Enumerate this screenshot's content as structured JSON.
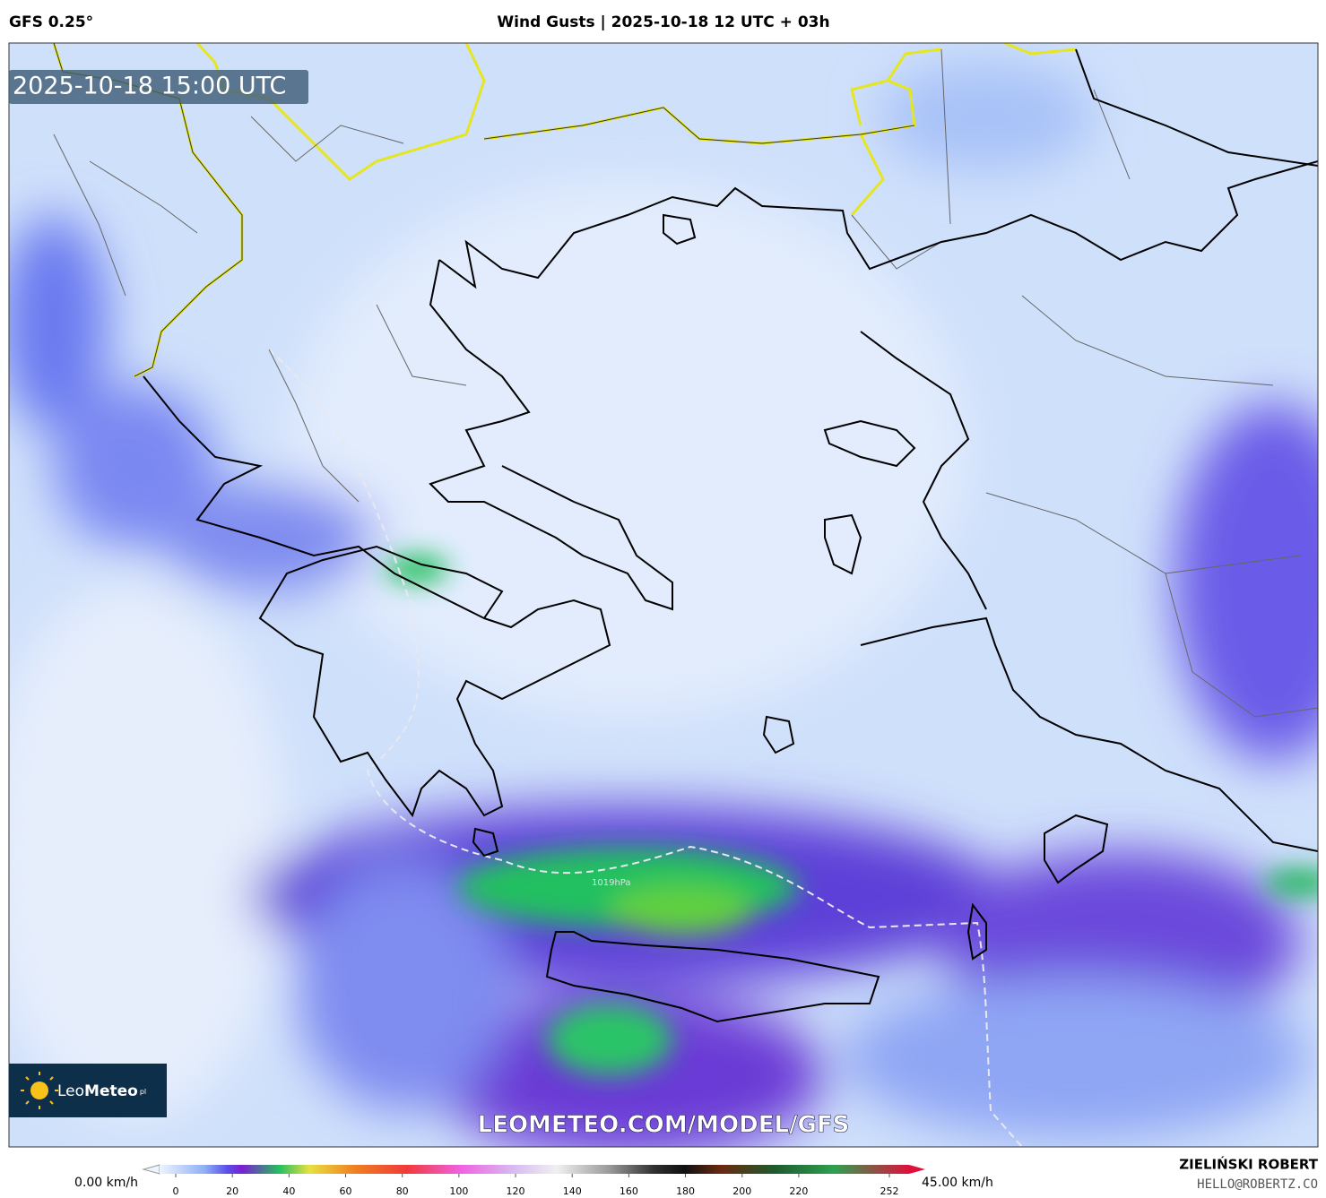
{
  "header": {
    "model": "GFS 0.25°",
    "title": "Wind Gusts | 2025-10-18 12 UTC + 03h"
  },
  "map": {
    "timestamp": "2025-10-18 15:00 UTC",
    "isobar_label": "1019hPa",
    "url": "LEOMETEO.COM/MODEL/GFS",
    "logo_leo": "Leo",
    "logo_meteo": "Meteo",
    "logo_suffix": "pl"
  },
  "colorbar": {
    "min_label": "0.00 km/h",
    "max_label": "45.00 km/h",
    "ticks": [
      0,
      20,
      40,
      60,
      80,
      100,
      120,
      140,
      160,
      180,
      200,
      220,
      252
    ]
  },
  "credits": {
    "author": "ZIELIŃSKI ROBERT",
    "email": "HELLO@ROBERTZ.CO"
  }
}
